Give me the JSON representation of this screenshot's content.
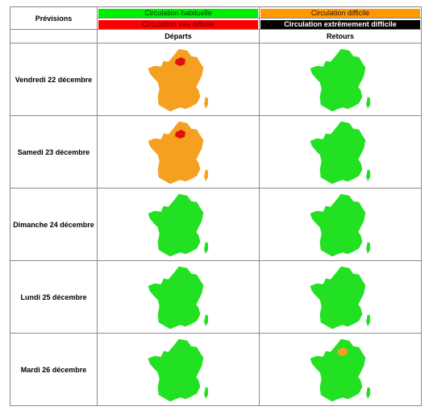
{
  "header": {
    "label": "Prévisions",
    "departs": "Départs",
    "retours": "Retours"
  },
  "legend": [
    {
      "label": "Circulation habituelle",
      "color": "#00ee00"
    },
    {
      "label": "Circulation difficile",
      "color": "#ff9900"
    },
    {
      "label": "Circulation très difficile",
      "color": "#ff0000"
    },
    {
      "label": "Circulation extrêmement difficile",
      "color": "#000000"
    }
  ],
  "days": [
    {
      "label": "Vendredi 22 décembre",
      "departs_level": "difficile",
      "departs_hotspot": "très difficile",
      "retours_level": "habituelle",
      "retours_hotspot": ""
    },
    {
      "label": "Samedi 23 décembre",
      "departs_level": "difficile",
      "departs_hotspot": "très difficile",
      "retours_level": "habituelle",
      "retours_hotspot": ""
    },
    {
      "label": "Dimanche 24 décembre",
      "departs_level": "habituelle",
      "departs_hotspot": "",
      "retours_level": "habituelle",
      "retours_hotspot": ""
    },
    {
      "label": "Lundi 25 décembre",
      "departs_level": "habituelle",
      "departs_hotspot": "",
      "retours_level": "habituelle",
      "retours_hotspot": ""
    },
    {
      "label": "Mardi 26 décembre",
      "departs_level": "habituelle",
      "departs_hotspot": "",
      "retours_level": "habituelle",
      "retours_hotspot": "difficile"
    }
  ],
  "colors": {
    "habituelle": "#22e022",
    "difficile": "#f5a020",
    "très difficile": "#e01010",
    "extrêmement difficile": "#000000"
  }
}
